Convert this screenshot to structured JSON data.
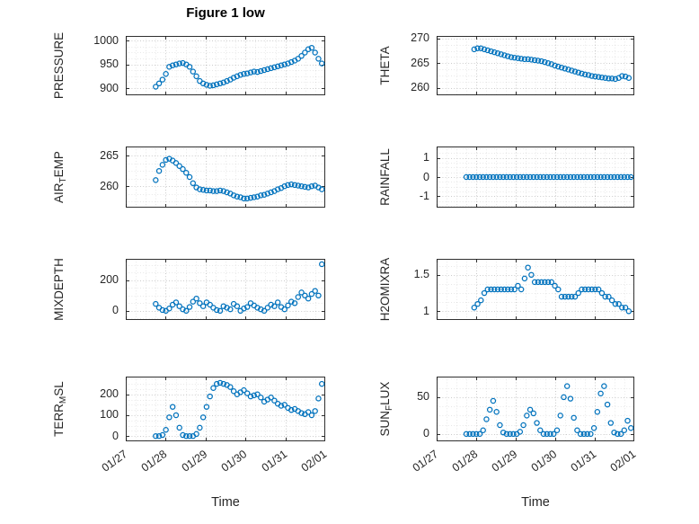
{
  "figure": {
    "title": "Figure 1 low",
    "xlabel": "Time",
    "marker_color": "#0072BD",
    "xlim": [
      0,
      5
    ],
    "xticks": [
      0,
      1,
      2,
      3,
      4,
      5
    ],
    "xtick_labels": [
      "01/27",
      "01/28",
      "01/29",
      "01/30",
      "01/31",
      "02/01"
    ],
    "x_common": [
      0.75,
      0.835,
      0.92,
      1.005,
      1.09,
      1.175,
      1.26,
      1.345,
      1.43,
      1.515,
      1.6,
      1.685,
      1.77,
      1.855,
      1.94,
      2.025,
      2.11,
      2.195,
      2.28,
      2.365,
      2.45,
      2.535,
      2.62,
      2.705,
      2.79,
      2.875,
      2.96,
      3.045,
      3.13,
      3.215,
      3.3,
      3.385,
      3.47,
      3.555,
      3.64,
      3.725,
      3.81,
      3.895,
      3.98,
      4.065,
      4.15,
      4.235,
      4.32,
      4.405,
      4.49,
      4.575,
      4.66,
      4.745,
      4.83,
      4.915
    ]
  },
  "chart_data": [
    {
      "id": "pressure",
      "type": "scatter",
      "row": 0,
      "col": 0,
      "ylabel": {
        "pre": "PRESSURE",
        "sub": "",
        "post": ""
      },
      "ylim": [
        885,
        1010
      ],
      "yticks": [
        900,
        950,
        1000
      ],
      "y": [
        903,
        910,
        918,
        930,
        945,
        948,
        950,
        952,
        953,
        950,
        945,
        935,
        925,
        915,
        910,
        907,
        905,
        906,
        908,
        910,
        912,
        915,
        918,
        922,
        925,
        928,
        930,
        931,
        933,
        935,
        934,
        936,
        938,
        940,
        942,
        944,
        946,
        948,
        950,
        952,
        955,
        958,
        962,
        968,
        975,
        982,
        985,
        975,
        962,
        952
      ]
    },
    {
      "id": "theta",
      "type": "scatter",
      "row": 0,
      "col": 1,
      "ylabel": {
        "pre": "THETA",
        "sub": "",
        "post": ""
      },
      "ylim": [
        258.5,
        270.5
      ],
      "yticks": [
        260,
        265,
        270
      ],
      "x": [
        0.95,
        1.035,
        1.12,
        1.205,
        1.29,
        1.375,
        1.46,
        1.545,
        1.63,
        1.715,
        1.8,
        1.885,
        1.97,
        2.055,
        2.14,
        2.225,
        2.31,
        2.395,
        2.48,
        2.565,
        2.65,
        2.735,
        2.82,
        2.905,
        2.99,
        3.075,
        3.16,
        3.245,
        3.33,
        3.415,
        3.5,
        3.585,
        3.67,
        3.755,
        3.84,
        3.925,
        4.01,
        4.095,
        4.18,
        4.265,
        4.35,
        4.435,
        4.52,
        4.605,
        4.69,
        4.775,
        4.86
      ],
      "y": [
        267.8,
        268,
        268,
        267.8,
        267.6,
        267.4,
        267.2,
        267,
        266.8,
        266.6,
        266.4,
        266.2,
        266.1,
        266,
        265.9,
        265.8,
        265.8,
        265.7,
        265.6,
        265.5,
        265.4,
        265.2,
        265,
        264.8,
        264.5,
        264.3,
        264.1,
        263.9,
        263.7,
        263.5,
        263.3,
        263.1,
        262.9,
        262.7,
        262.6,
        262.4,
        262.3,
        262.2,
        262.1,
        262,
        261.9,
        261.9,
        261.8,
        262,
        262.4,
        262.3,
        262
      ]
    },
    {
      "id": "air-temp",
      "type": "scatter",
      "row": 1,
      "col": 0,
      "ylabel": {
        "pre": "AIR",
        "sub": "T",
        "post": "EMP"
      },
      "ylim": [
        256.5,
        266.5
      ],
      "yticks": [
        260,
        265
      ],
      "y": [
        261,
        262.5,
        263.5,
        264.3,
        264.5,
        264.2,
        263.8,
        263.3,
        262.8,
        262.2,
        261.5,
        260.5,
        259.8,
        259.5,
        259.4,
        259.3,
        259.3,
        259.2,
        259.2,
        259.3,
        259.2,
        259,
        258.8,
        258.5,
        258.3,
        258.2,
        258,
        258,
        258.1,
        258.2,
        258.3,
        258.5,
        258.6,
        258.8,
        259,
        259.2,
        259.5,
        259.7,
        260,
        260.2,
        260.3,
        260.2,
        260.1,
        260,
        259.9,
        259.8,
        260,
        260.1,
        259.8,
        259.5
      ]
    },
    {
      "id": "rainfall",
      "type": "scatter",
      "row": 1,
      "col": 1,
      "ylabel": {
        "pre": "RAINFALL",
        "sub": "",
        "post": ""
      },
      "ylim": [
        -1.6,
        1.6
      ],
      "yticks": [
        -1,
        0,
        1
      ],
      "y": [
        0,
        0,
        0,
        0,
        0,
        0,
        0,
        0,
        0,
        0,
        0,
        0,
        0,
        0,
        0,
        0,
        0,
        0,
        0,
        0,
        0,
        0,
        0,
        0,
        0,
        0,
        0,
        0,
        0,
        0,
        0,
        0,
        0,
        0,
        0,
        0,
        0,
        0,
        0,
        0,
        0,
        0,
        0,
        0,
        0,
        0,
        0,
        0,
        0,
        0
      ]
    },
    {
      "id": "mixdepth",
      "type": "scatter",
      "row": 2,
      "col": 0,
      "ylabel": {
        "pre": "MIXDEPTH",
        "sub": "",
        "post": ""
      },
      "ylim": [
        -60,
        340
      ],
      "yticks": [
        0,
        200
      ],
      "y": [
        45,
        20,
        5,
        0,
        15,
        40,
        55,
        30,
        10,
        0,
        25,
        60,
        80,
        50,
        30,
        55,
        40,
        20,
        5,
        0,
        30,
        20,
        10,
        45,
        30,
        0,
        15,
        25,
        50,
        35,
        20,
        10,
        0,
        20,
        40,
        30,
        55,
        25,
        10,
        35,
        60,
        50,
        90,
        120,
        100,
        80,
        110,
        130,
        100,
        305
      ]
    },
    {
      "id": "h2omixra",
      "type": "scatter",
      "row": 2,
      "col": 1,
      "ylabel": {
        "pre": "H2OMIXRA",
        "sub": "",
        "post": ""
      },
      "ylim": [
        0.88,
        1.72
      ],
      "yticks": [
        1,
        1.5
      ],
      "x": [
        0.95,
        1.035,
        1.12,
        1.205,
        1.29,
        1.375,
        1.46,
        1.545,
        1.63,
        1.715,
        1.8,
        1.885,
        1.97,
        2.055,
        2.14,
        2.225,
        2.31,
        2.395,
        2.48,
        2.565,
        2.65,
        2.735,
        2.82,
        2.905,
        2.99,
        3.075,
        3.16,
        3.245,
        3.33,
        3.415,
        3.5,
        3.585,
        3.67,
        3.755,
        3.84,
        3.925,
        4.01,
        4.095,
        4.18,
        4.265,
        4.35,
        4.435,
        4.52,
        4.605,
        4.69,
        4.775,
        4.86
      ],
      "y": [
        1.05,
        1.1,
        1.15,
        1.25,
        1.3,
        1.3,
        1.3,
        1.3,
        1.3,
        1.3,
        1.3,
        1.3,
        1.3,
        1.35,
        1.3,
        1.45,
        1.6,
        1.5,
        1.4,
        1.4,
        1.4,
        1.4,
        1.4,
        1.4,
        1.35,
        1.3,
        1.2,
        1.2,
        1.2,
        1.2,
        1.2,
        1.25,
        1.3,
        1.3,
        1.3,
        1.3,
        1.3,
        1.3,
        1.25,
        1.2,
        1.2,
        1.15,
        1.1,
        1.1,
        1.05,
        1.05,
        1
      ]
    },
    {
      "id": "terr-msl",
      "type": "scatter",
      "row": 3,
      "col": 0,
      "ylabel": {
        "pre": "TERR",
        "sub": "M",
        "post": "SL"
      },
      "ylim": [
        -25,
        285
      ],
      "yticks": [
        0,
        100,
        200
      ],
      "y": [
        0,
        0,
        5,
        30,
        90,
        140,
        100,
        40,
        5,
        0,
        0,
        0,
        10,
        40,
        90,
        140,
        190,
        230,
        250,
        255,
        250,
        245,
        235,
        215,
        200,
        210,
        220,
        205,
        190,
        195,
        200,
        185,
        165,
        175,
        185,
        170,
        155,
        145,
        150,
        135,
        125,
        130,
        120,
        110,
        105,
        115,
        100,
        120,
        180,
        250
      ]
    },
    {
      "id": "sun-flux",
      "type": "scatter",
      "row": 3,
      "col": 1,
      "ylabel": {
        "pre": "SUN",
        "sub": "F",
        "post": "LUX"
      },
      "ylim": [
        -10,
        78
      ],
      "yticks": [
        0,
        50
      ],
      "y": [
        0,
        0,
        0,
        0,
        0,
        5,
        20,
        33,
        45,
        30,
        12,
        2,
        0,
        0,
        0,
        0,
        3,
        12,
        25,
        33,
        28,
        15,
        5,
        0,
        0,
        0,
        0,
        5,
        25,
        50,
        65,
        48,
        22,
        5,
        0,
        0,
        0,
        0,
        8,
        30,
        55,
        65,
        40,
        15,
        2,
        0,
        0,
        5,
        18,
        8
      ]
    }
  ]
}
